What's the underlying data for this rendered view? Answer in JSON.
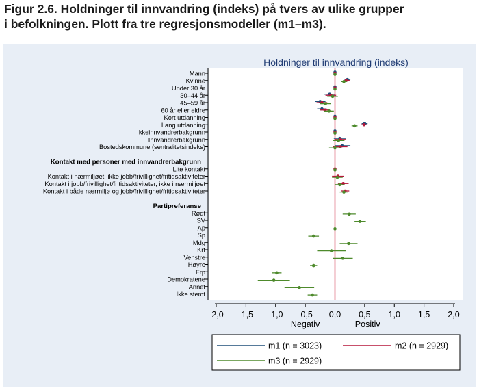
{
  "figure_title_lines": [
    "Figur 2.6. Holdninger til innvandring (indeks) på tvers av ulike grupper",
    "i befolkningen. Plott fra tre regresjonsmodeller (m1–m3)."
  ],
  "colors": {
    "panel_bg": "#e8eef6",
    "plot_bg": "#ffffff",
    "m1": "#1f4e79",
    "m2": "#b5173a",
    "m3": "#4e8a2c",
    "zero_line": "#c8102e",
    "title_blue": "#1f3b73"
  },
  "chart_data": {
    "type": "scatter",
    "title": "Holdninger til innvandring (indeks)",
    "xlim": [
      -2.0,
      2.0
    ],
    "x_ticks": [
      -2.0,
      -1.5,
      -1.0,
      -0.5,
      0.0,
      0.5,
      1.0,
      1.5,
      2.0
    ],
    "x_tick_labels": [
      "-2,0",
      "-1,5",
      "-1,0",
      "-0,5",
      "0,0",
      "0,5",
      "1,0",
      "1,5",
      "2,0"
    ],
    "x_end_labels": {
      "left": "Negativ",
      "right": "Positiv"
    },
    "reference_line_x": 0,
    "grid": false,
    "legend_position": "bottom",
    "rows": [
      {
        "label": "Mann",
        "type": "item"
      },
      {
        "label": "Kvinne",
        "type": "item"
      },
      {
        "label": "Under 30 år",
        "type": "item"
      },
      {
        "label": "30–44 år",
        "type": "item"
      },
      {
        "label": "45–59 år",
        "type": "item"
      },
      {
        "label": "60 år eller eldre",
        "type": "item"
      },
      {
        "label": "Kort utdanning",
        "type": "item"
      },
      {
        "label": "Lang utdanning",
        "type": "item"
      },
      {
        "label": "Ikkeinnvandrerbakgrunn",
        "type": "item"
      },
      {
        "label": "Innvandrerbakgrunn",
        "type": "item"
      },
      {
        "label": "Bostedskommune (sentralitetsindeks)",
        "type": "item"
      },
      {
        "label": "",
        "type": "blank"
      },
      {
        "label": "Kontakt med personer med innvandrerbakgrunn",
        "type": "header"
      },
      {
        "label": "Lite kontakt",
        "type": "item"
      },
      {
        "label": "Kontakt i nærmiljøet, ikke jobb/frivillighet/fritidsaktiviteter",
        "type": "item"
      },
      {
        "label": "Kontakt i jobb/frivillighet/fritidsaktiviteter, ikke i nærmiljøet",
        "type": "item"
      },
      {
        "label": "Kontakt i både nærmiljø og jobb/frivillighet/fritidsaktiviteter",
        "type": "item"
      },
      {
        "label": "",
        "type": "blank"
      },
      {
        "label": "Partipreferanse",
        "type": "header"
      },
      {
        "label": "Rødt",
        "type": "item"
      },
      {
        "label": "SV",
        "type": "item"
      },
      {
        "label": "Ap",
        "type": "item"
      },
      {
        "label": "Sp",
        "type": "item"
      },
      {
        "label": "Mdg",
        "type": "item"
      },
      {
        "label": "Krf",
        "type": "item"
      },
      {
        "label": "Venstre",
        "type": "item"
      },
      {
        "label": "Høyre",
        "type": "item"
      },
      {
        "label": "Frp",
        "type": "item"
      },
      {
        "label": "Demokratene",
        "type": "item"
      },
      {
        "label": "Annet",
        "type": "item"
      },
      {
        "label": "Ikke stemt",
        "type": "item"
      }
    ],
    "series": [
      {
        "name": "m1 (n = 3023)",
        "color": "#1f4e79",
        "offset": -1,
        "points": [
          {
            "row": "Mann",
            "est": 0.0,
            "lo": 0.0,
            "hi": 0.0
          },
          {
            "row": "Kvinne",
            "est": 0.21,
            "lo": 0.16,
            "hi": 0.26
          },
          {
            "row": "Under 30 år",
            "est": 0.0,
            "lo": 0.0,
            "hi": 0.0
          },
          {
            "row": "30–44 år",
            "est": -0.09,
            "lo": -0.18,
            "hi": 0.0
          },
          {
            "row": "45–59 år",
            "est": -0.25,
            "lo": -0.34,
            "hi": -0.16
          },
          {
            "row": "60 år eller eldre",
            "est": -0.22,
            "lo": -0.3,
            "hi": -0.14
          },
          {
            "row": "Kort utdanning",
            "est": 0.0,
            "lo": 0.0,
            "hi": 0.0
          },
          {
            "row": "Lang utdanning",
            "est": 0.5,
            "lo": 0.45,
            "hi": 0.55
          },
          {
            "row": "Ikkeinnvandrerbakgrunn",
            "est": 0.0,
            "lo": 0.0,
            "hi": 0.0
          },
          {
            "row": "Innvandrerbakgrunn",
            "est": 0.08,
            "lo": -0.02,
            "hi": 0.18
          },
          {
            "row": "Bostedskommune (sentralitetsindeks)",
            "est": 0.12,
            "lo": 0.0,
            "hi": 0.26
          }
        ]
      },
      {
        "name": "m2 (n = 2929)",
        "color": "#b5173a",
        "offset": 0,
        "points": [
          {
            "row": "Mann",
            "est": 0.0,
            "lo": 0.0,
            "hi": 0.0
          },
          {
            "row": "Kvinne",
            "est": 0.19,
            "lo": 0.14,
            "hi": 0.25
          },
          {
            "row": "Under 30 år",
            "est": 0.0,
            "lo": 0.0,
            "hi": 0.0
          },
          {
            "row": "30–44 år",
            "est": -0.07,
            "lo": -0.16,
            "hi": 0.02
          },
          {
            "row": "45–59 år",
            "est": -0.22,
            "lo": -0.31,
            "hi": -0.13
          },
          {
            "row": "60 år eller eldre",
            "est": -0.17,
            "lo": -0.25,
            "hi": -0.09
          },
          {
            "row": "Kort utdanning",
            "est": 0.0,
            "lo": 0.0,
            "hi": 0.0
          },
          {
            "row": "Lang utdanning",
            "est": 0.49,
            "lo": 0.44,
            "hi": 0.54
          },
          {
            "row": "Ikkeinnvandrerbakgrunn",
            "est": 0.0,
            "lo": 0.0,
            "hi": 0.0
          },
          {
            "row": "Innvandrerbakgrunn",
            "est": 0.09,
            "lo": -0.01,
            "hi": 0.19
          },
          {
            "row": "Bostedskommune (sentralitetsindeks)",
            "est": 0.09,
            "lo": -0.03,
            "hi": 0.21
          },
          {
            "row": "Lite kontakt",
            "est": 0.0,
            "lo": 0.0,
            "hi": 0.0
          },
          {
            "row": "Kontakt i nærmiljøet, ikke jobb/frivillighet/fritidsaktiviteter",
            "est": 0.05,
            "lo": -0.05,
            "hi": 0.15
          },
          {
            "row": "Kontakt i jobb/frivillighet/fritidsaktiviteter, ikke i nærmiljøet",
            "est": 0.14,
            "lo": 0.05,
            "hi": 0.23
          },
          {
            "row": "Kontakt i både nærmiljø og jobb/frivillighet/fritidsaktiviteter",
            "est": 0.17,
            "lo": 0.1,
            "hi": 0.24
          }
        ]
      },
      {
        "name": "m3 (n = 2929)",
        "color": "#4e8a2c",
        "offset": 1,
        "points": [
          {
            "row": "Mann",
            "est": 0.0,
            "lo": 0.0,
            "hi": 0.0
          },
          {
            "row": "Kvinne",
            "est": 0.15,
            "lo": 0.1,
            "hi": 0.2
          },
          {
            "row": "Under 30 år",
            "est": 0.0,
            "lo": 0.0,
            "hi": 0.0
          },
          {
            "row": "30–44 år",
            "est": -0.04,
            "lo": -0.13,
            "hi": 0.05
          },
          {
            "row": "45–59 år",
            "est": -0.16,
            "lo": -0.25,
            "hi": -0.07
          },
          {
            "row": "60 år eller eldre",
            "est": -0.1,
            "lo": -0.18,
            "hi": -0.02
          },
          {
            "row": "Kort utdanning",
            "est": 0.0,
            "lo": 0.0,
            "hi": 0.0
          },
          {
            "row": "Lang utdanning",
            "est": 0.33,
            "lo": 0.28,
            "hi": 0.38
          },
          {
            "row": "Ikkeinnvandrerbakgrunn",
            "est": 0.0,
            "lo": 0.0,
            "hi": 0.0
          },
          {
            "row": "Innvandrerbakgrunn",
            "est": 0.06,
            "lo": -0.04,
            "hi": 0.16
          },
          {
            "row": "Bostedskommune (sentralitetsindeks)",
            "est": 0.0,
            "lo": -0.1,
            "hi": 0.1
          },
          {
            "row": "Lite kontakt",
            "est": 0.0,
            "lo": 0.0,
            "hi": 0.0
          },
          {
            "row": "Kontakt i nærmiljøet, ikke jobb/frivillighet/fritidsaktiviteter",
            "est": 0.04,
            "lo": -0.05,
            "hi": 0.13
          },
          {
            "row": "Kontakt i jobb/frivillighet/fritidsaktiviteter, ikke i nærmiljøet",
            "est": 0.08,
            "lo": 0.0,
            "hi": 0.16
          },
          {
            "row": "Kontakt i både nærmiljø og jobb/frivillighet/fritidsaktiviteter",
            "est": 0.15,
            "lo": 0.08,
            "hi": 0.22
          },
          {
            "row": "Rødt",
            "est": 0.24,
            "lo": 0.13,
            "hi": 0.35
          },
          {
            "row": "SV",
            "est": 0.42,
            "lo": 0.33,
            "hi": 0.52
          },
          {
            "row": "Ap",
            "est": 0.0,
            "lo": 0.0,
            "hi": 0.0
          },
          {
            "row": "Sp",
            "est": -0.36,
            "lo": -0.45,
            "hi": -0.27
          },
          {
            "row": "Mdg",
            "est": 0.23,
            "lo": 0.08,
            "hi": 0.38
          },
          {
            "row": "Krf",
            "est": -0.06,
            "lo": -0.3,
            "hi": 0.18
          },
          {
            "row": "Venstre",
            "est": 0.13,
            "lo": -0.03,
            "hi": 0.3
          },
          {
            "row": "Høyre",
            "est": -0.36,
            "lo": -0.42,
            "hi": -0.3
          },
          {
            "row": "Frp",
            "est": -0.98,
            "lo": -1.06,
            "hi": -0.9
          },
          {
            "row": "Demokratene",
            "est": -1.03,
            "lo": -1.3,
            "hi": -0.76
          },
          {
            "row": "Annet",
            "est": -0.6,
            "lo": -0.85,
            "hi": -0.35
          },
          {
            "row": "Ikke stemt",
            "est": -0.38,
            "lo": -0.46,
            "hi": -0.3
          }
        ]
      }
    ]
  }
}
